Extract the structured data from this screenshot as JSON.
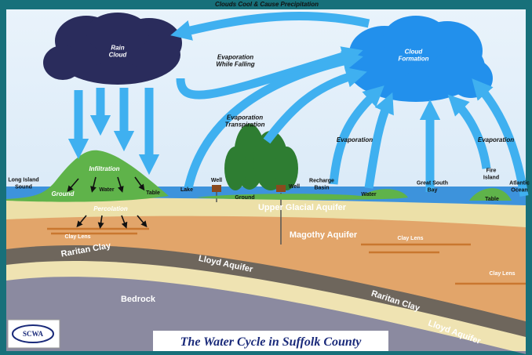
{
  "header": {
    "title": "Clouds Cool & Cause Precipitation"
  },
  "labels": [
    {
      "lines": [
        "Rain",
        "Cloud"
      ]
    },
    {
      "lines": [
        "Evaporation",
        "While Falling"
      ]
    },
    {
      "lines": [
        "Cloud",
        "Formation"
      ]
    },
    {
      "lines": [
        "Evaporation",
        "Transpiration"
      ]
    },
    {
      "lines": [
        "Evaporation"
      ]
    },
    {
      "lines": [
        "Evaporation"
      ]
    },
    {
      "lines": [
        "Infiltration"
      ]
    },
    {
      "lines": [
        "Long Island",
        "Sound"
      ]
    },
    {
      "lines": [
        "Ground"
      ]
    },
    {
      "lines": [
        "Water"
      ]
    },
    {
      "lines": [
        "Table"
      ]
    },
    {
      "lines": [
        "Lake"
      ]
    },
    {
      "lines": [
        "Well"
      ]
    },
    {
      "lines": [
        "Ground"
      ]
    },
    {
      "lines": [
        "Well"
      ]
    },
    {
      "lines": [
        "Recharge",
        "Basin"
      ]
    },
    {
      "lines": [
        "Water"
      ]
    },
    {
      "lines": [
        "Great South",
        "Bay"
      ]
    },
    {
      "lines": [
        "Fire",
        "Island"
      ]
    },
    {
      "lines": [
        "Table"
      ]
    },
    {
      "lines": [
        "Atlantic",
        "Ocean"
      ]
    },
    {
      "lines": [
        "Percolation"
      ]
    },
    {
      "lines": [
        "Upper Glacial Aquifer"
      ]
    },
    {
      "lines": [
        "Clay Lens"
      ]
    },
    {
      "lines": [
        "Magothy Aquifer"
      ]
    },
    {
      "lines": [
        "Clay Lens"
      ]
    },
    {
      "lines": [
        "Raritan Clay"
      ]
    },
    {
      "lines": [
        "Lloyd Aquifer"
      ]
    },
    {
      "lines": [
        "Clay Lens"
      ]
    },
    {
      "lines": [
        "Bedrock"
      ]
    },
    {
      "lines": [
        "Raritan Clay"
      ]
    },
    {
      "lines": [
        "Lloyd Aquifer"
      ]
    }
  ],
  "footer": {
    "logo": "SCWA",
    "title": "The Water Cycle in Suffolk County"
  }
}
